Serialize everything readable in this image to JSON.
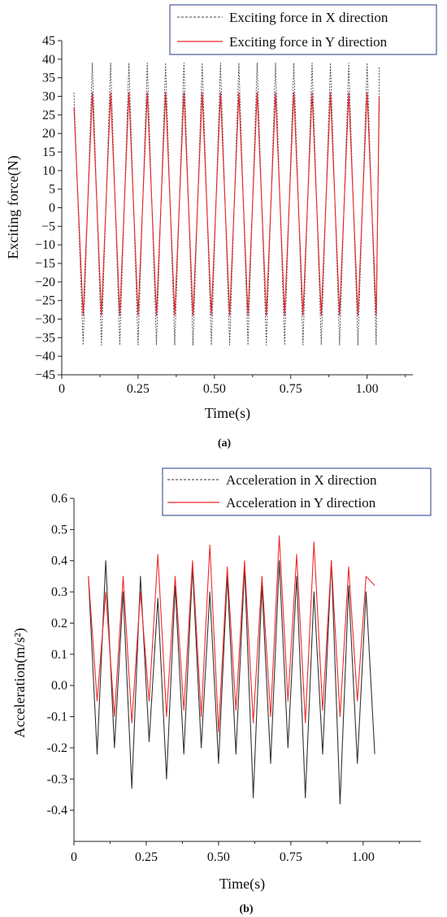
{
  "chart_data": [
    {
      "type": "line",
      "panel_label": "(a)",
      "xlabel": "Time(s)",
      "ylabel": "Exciting force(N)",
      "xlim": [
        0,
        1.15
      ],
      "ylim": [
        -45,
        45
      ],
      "x_ticks": [
        0,
        0.25,
        0.5,
        0.75,
        1.0
      ],
      "x_tick_labels": [
        "0",
        "0.25",
        "0.50",
        "0.75",
        "1.00"
      ],
      "y_ticks": [
        -45,
        -40,
        -35,
        -30,
        -25,
        -20,
        -15,
        -10,
        -5,
        0,
        5,
        10,
        15,
        20,
        25,
        30,
        35,
        40,
        45
      ],
      "y_tick_labels": [
        "−45",
        "−40",
        "−35",
        "−30",
        "−25",
        "−20",
        "−15",
        "−10",
        "−5",
        "0",
        "5",
        "10",
        "15",
        "20",
        "25",
        "30",
        "35",
        "40",
        "45"
      ],
      "legend_position": "top-right",
      "grid": false,
      "series": [
        {
          "name": "Exciting force in X direction",
          "color": "#444444",
          "style": "dashed",
          "x": [
            0.04,
            0.07,
            0.1,
            0.13,
            0.16,
            0.19,
            0.22,
            0.25,
            0.28,
            0.31,
            0.34,
            0.37,
            0.4,
            0.43,
            0.46,
            0.49,
            0.52,
            0.55,
            0.58,
            0.61,
            0.64,
            0.67,
            0.7,
            0.73,
            0.76,
            0.79,
            0.82,
            0.85,
            0.88,
            0.91,
            0.94,
            0.97,
            1.0,
            1.03,
            1.04
          ],
          "y": [
            31,
            -37,
            39,
            -37,
            39,
            -37,
            39,
            -37,
            39,
            -37,
            39,
            -37,
            39,
            -37,
            39,
            -37,
            39,
            -37,
            39,
            -37,
            39,
            -37,
            39,
            -37,
            39,
            -37,
            39,
            -37,
            39,
            -37,
            39,
            -37,
            39,
            -37,
            38
          ]
        },
        {
          "name": "Exciting force in Y direction",
          "color": "#e8242a",
          "style": "solid",
          "x": [
            0.04,
            0.07,
            0.1,
            0.13,
            0.16,
            0.19,
            0.22,
            0.25,
            0.28,
            0.31,
            0.34,
            0.37,
            0.4,
            0.43,
            0.46,
            0.49,
            0.52,
            0.55,
            0.58,
            0.61,
            0.64,
            0.67,
            0.7,
            0.73,
            0.76,
            0.79,
            0.82,
            0.85,
            0.88,
            0.91,
            0.94,
            0.97,
            1.0,
            1.03,
            1.04
          ],
          "y": [
            27,
            -29,
            31,
            -29,
            31,
            -29,
            31,
            -29,
            31,
            -29,
            31,
            -29,
            31,
            -29,
            31,
            -29,
            31,
            -29,
            31,
            -29,
            31,
            -29,
            31,
            -29,
            31,
            -29,
            31,
            -29,
            31,
            -29,
            31,
            -29,
            31,
            -29,
            30
          ]
        }
      ]
    },
    {
      "type": "line",
      "panel_label": "(b)",
      "xlabel": "Time(s)",
      "ylabel": "Acceleration(m/s²)",
      "xlim": [
        0,
        1.2
      ],
      "ylim": [
        -0.5,
        0.6
      ],
      "x_ticks": [
        0,
        0.25,
        0.5,
        0.75,
        1.0
      ],
      "x_tick_labels": [
        "0",
        "0.25",
        "0.50",
        "0.75",
        "1.00"
      ],
      "y_ticks": [
        -0.4,
        -0.3,
        -0.2,
        -0.1,
        0.0,
        0.1,
        0.2,
        0.3,
        0.4,
        0.5,
        0.6
      ],
      "y_tick_labels": [
        "-0.4",
        "-0.3",
        "-0.2",
        "-0.1",
        "0.0",
        "0.1",
        "0.2",
        "0.3",
        "0.4",
        "0.5",
        "0.6"
      ],
      "legend_position": "top-right",
      "grid": false,
      "series": [
        {
          "name": "Acceleration in X direction",
          "color": "#333333",
          "style": "solid",
          "x": [
            0.05,
            0.08,
            0.11,
            0.14,
            0.17,
            0.2,
            0.23,
            0.26,
            0.29,
            0.32,
            0.35,
            0.38,
            0.41,
            0.44,
            0.47,
            0.5,
            0.53,
            0.56,
            0.59,
            0.62,
            0.65,
            0.68,
            0.71,
            0.74,
            0.77,
            0.8,
            0.83,
            0.86,
            0.89,
            0.92,
            0.95,
            0.98,
            1.01,
            1.04
          ],
          "y": [
            0.35,
            -0.22,
            0.4,
            -0.2,
            0.3,
            -0.33,
            0.35,
            -0.18,
            0.28,
            -0.3,
            0.32,
            -0.22,
            0.38,
            -0.2,
            0.3,
            -0.25,
            0.35,
            -0.22,
            0.38,
            -0.36,
            0.32,
            -0.25,
            0.4,
            -0.2,
            0.35,
            -0.36,
            0.3,
            -0.22,
            0.4,
            -0.38,
            0.32,
            -0.25,
            0.3,
            -0.22
          ]
        },
        {
          "name": "Acceleration in Y direction",
          "color": "#ee2a2a",
          "style": "solid",
          "x": [
            0.05,
            0.08,
            0.11,
            0.14,
            0.17,
            0.2,
            0.23,
            0.26,
            0.29,
            0.32,
            0.35,
            0.38,
            0.41,
            0.44,
            0.47,
            0.5,
            0.53,
            0.56,
            0.59,
            0.62,
            0.65,
            0.68,
            0.71,
            0.74,
            0.77,
            0.8,
            0.83,
            0.86,
            0.89,
            0.92,
            0.95,
            0.98,
            1.01,
            1.04
          ],
          "y": [
            0.35,
            -0.05,
            0.3,
            -0.1,
            0.35,
            -0.12,
            0.3,
            -0.05,
            0.42,
            -0.1,
            0.35,
            -0.08,
            0.4,
            -0.1,
            0.45,
            -0.15,
            0.38,
            -0.08,
            0.4,
            -0.12,
            0.35,
            -0.1,
            0.48,
            -0.05,
            0.42,
            -0.12,
            0.46,
            -0.08,
            0.4,
            -0.1,
            0.38,
            -0.05,
            0.35,
            0.32
          ]
        }
      ]
    }
  ]
}
